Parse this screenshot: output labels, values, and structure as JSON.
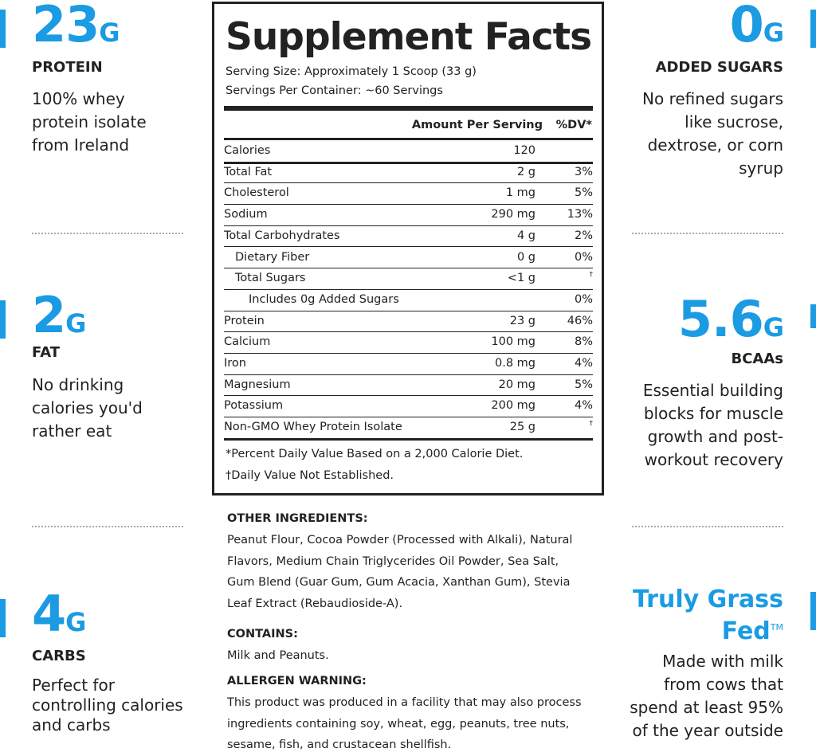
{
  "left": [
    {
      "amount": "23",
      "unit": "G",
      "label": "PROTEIN",
      "text": "100% whey protein isolate from Ireland"
    },
    {
      "amount": "2",
      "unit": "G",
      "label": "FAT",
      "text": "No drinking calories you'd rather eat"
    },
    {
      "amount": "4",
      "unit": "G",
      "label": "CARBS",
      "text": "Perfect for controlling calories and carbs"
    }
  ],
  "right": [
    {
      "amount": "0",
      "unit": "G",
      "label": "ADDED SUGARS",
      "text": "No refined sugars like sucrose, dextrose, or corn syrup"
    },
    {
      "amount": "5.6",
      "unit": "G",
      "label": "BCAAs",
      "text": "Essential building blocks for muscle growth and post-workout recovery"
    },
    {
      "title": "Truly Grass Fed",
      "mark": "TM",
      "text": "Made with milk from cows that spend at least 95% of the year outside"
    }
  ],
  "facts": {
    "title": "Supplement Facts",
    "serving_size": "Serving Size: Approximately 1 Scoop (33 g)",
    "servings": "Servings Per Container: ~60 Servings",
    "header": {
      "amount": "Amount Per Serving",
      "dv": "%DV*"
    },
    "rows": [
      {
        "name": "Calories",
        "amount": "120"
      },
      {
        "name": "Total Fat",
        "amount": "2 g",
        "dv": "3%"
      },
      {
        "name": "Cholesterol",
        "amount": "1 mg",
        "dv": "5%"
      },
      {
        "name": "Sodium",
        "amount": "290 mg",
        "dv": "13%"
      },
      {
        "name": "Total Carbohydrates",
        "amount": "4 g",
        "dv": "2%"
      },
      {
        "name": "Dietary Fiber",
        "amount": "0 g",
        "dv": "0%"
      },
      {
        "name": "Total Sugars",
        "amount": "<1 g",
        "dv": "†"
      },
      {
        "name": "Includes 0g Added Sugars",
        "dv": "0%"
      },
      {
        "name": "Protein",
        "amount": "23 g",
        "dv": "46%"
      },
      {
        "name": "Calcium",
        "amount": "100 mg",
        "dv": "8%"
      },
      {
        "name": "Iron",
        "amount": "0.8 mg",
        "dv": "4%"
      },
      {
        "name": "Magnesium",
        "amount": "20 mg",
        "dv": "5%"
      },
      {
        "name": "Potassium",
        "amount": "200 mg",
        "dv": "4%"
      },
      {
        "name": "Non-GMO Whey Protein Isolate",
        "amount": "25 g",
        "dv": "†"
      }
    ],
    "footnotes": [
      "*Percent Daily Value Based on a 2,000 Calorie Diet.",
      "†Daily Value Not Established."
    ]
  },
  "ingredients": [
    {
      "heading": "OTHER INGREDIENTS:",
      "text": "Peanut Flour, Cocoa Powder (Processed with Alkali), Natural Flavors, Medium Chain Triglycerides Oil Powder, Sea Salt, Gum Blend (Guar Gum, Gum Acacia, Xanthan Gum), Stevia Leaf Extract (Rebaudioside-A)."
    },
    {
      "heading": "CONTAINS:",
      "text": "Milk and Peanuts."
    },
    {
      "heading": "ALLERGEN WARNING:",
      "text": "This product was produced in a facility that may also process ingredients containing soy, wheat, egg, peanuts, tree nuts, sesame, fish, and crustacean shellfish."
    }
  ]
}
